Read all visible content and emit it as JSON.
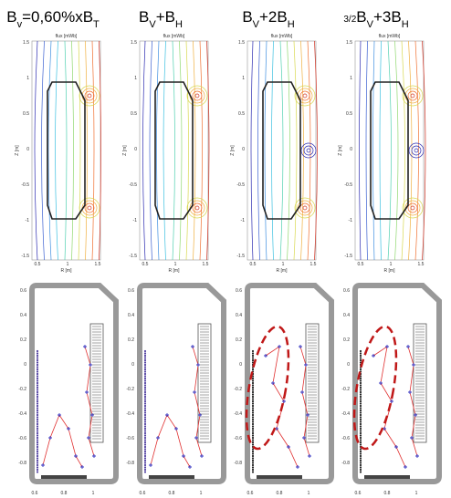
{
  "panels": [
    {
      "title": [
        {
          "text": "B"
        },
        {
          "text": "v",
          "sub": true
        },
        {
          "text": "=0,60%xB"
        },
        {
          "text": "T",
          "sub": true
        }
      ],
      "highlight": false,
      "center_spot": false
    },
    {
      "title": [
        {
          "text": "B"
        },
        {
          "text": "V",
          "sub": true
        },
        {
          "text": "+B"
        },
        {
          "text": "H",
          "sub": true
        }
      ],
      "highlight": false,
      "center_spot": false
    },
    {
      "title": [
        {
          "text": "B"
        },
        {
          "text": "V",
          "sub": true
        },
        {
          "text": "+2B"
        },
        {
          "text": "H",
          "sub": true
        }
      ],
      "highlight": true,
      "center_spot": true
    },
    {
      "title": [
        {
          "text": "3/2",
          "frac": true
        },
        {
          "text": "B"
        },
        {
          "text": "V",
          "sub": true
        },
        {
          "text": "+3B"
        },
        {
          "text": "H",
          "sub": true
        }
      ],
      "highlight": true,
      "center_spot": true
    }
  ],
  "top": {
    "plot_title": "flux [mWb]",
    "ylabel": "Z [m]",
    "xlabel": "R [m]",
    "yticks": [
      "1.5",
      "1",
      "0.5",
      "0",
      "-0.5",
      "-1",
      "-1.5"
    ],
    "xticks": [
      "0.5",
      "1",
      "1.5"
    ]
  },
  "bottom": {
    "yticks": [
      "0.6",
      "0.4",
      "0.2",
      "0",
      "-0.2",
      "-0.4",
      "-0.6",
      "-0.8"
    ],
    "xticks": [
      "0.6",
      "0.8",
      "1"
    ]
  }
}
